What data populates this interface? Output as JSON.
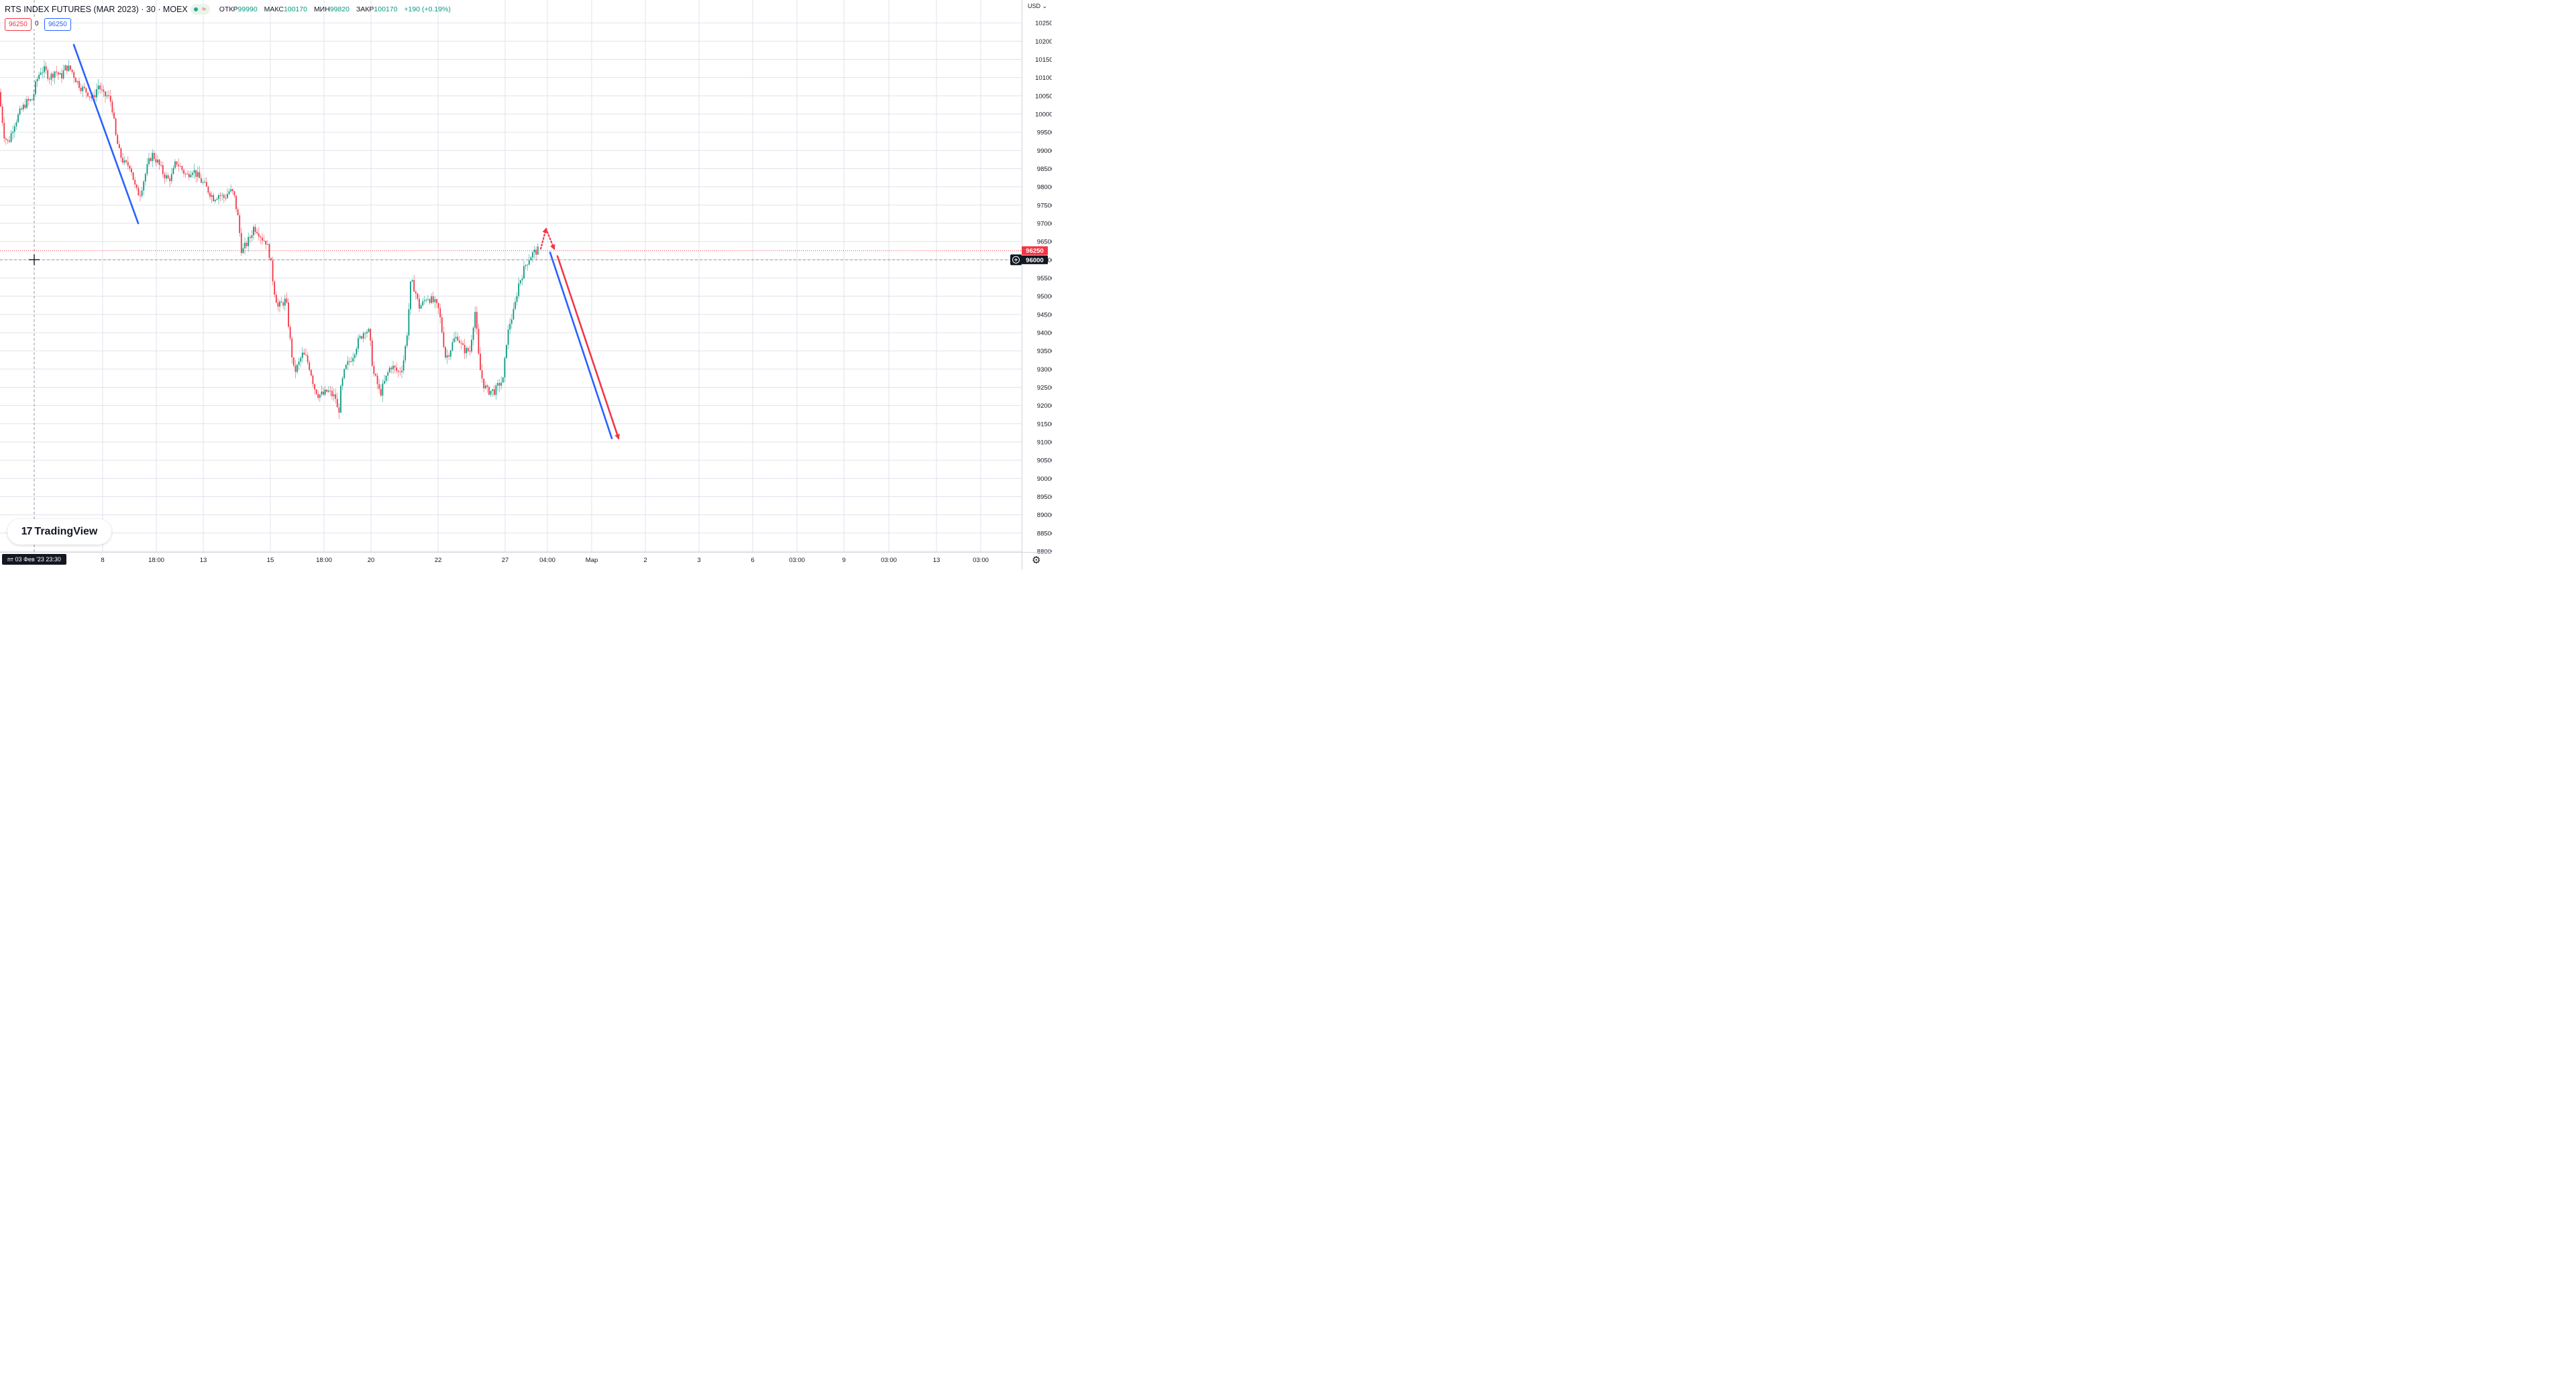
{
  "header": {
    "symbol": "RTS INDEX FUTURES (MAR 2023) · 30 · MOEX",
    "market_icon": "green-dot-icon",
    "wave_icon": "≈",
    "open_label": "ОТКР",
    "open_value": "99990",
    "high_label": "МАКС",
    "high_value": "100170",
    "low_label": "МИН",
    "low_value": "99820",
    "close_label": "ЗАКР",
    "close_value": "100170",
    "change": "+190 (+0.19%)"
  },
  "quote": {
    "sell": "96250",
    "spread": "0",
    "buy": "96250"
  },
  "currency_label": "USD ⌄",
  "logo": {
    "mark": "17",
    "text": "TradingView"
  },
  "colors": {
    "up": "#089981",
    "down": "#f23645",
    "blue_line": "#2962ff",
    "red_line": "#f23645",
    "grid": "#e0e3eb"
  },
  "crosshair": {
    "time_label": "пт 03 Фев '23   23:30",
    "price_label": "96000"
  },
  "last_price_label": "96250",
  "settings_icon": "gear-icon",
  "chart_data": {
    "type": "candlestick",
    "title": "RTS INDEX FUTURES (MAR 2023) · 30 · MOEX",
    "ylim": [
      88000,
      103000
    ],
    "y_ticks": [
      88000,
      88500,
      89000,
      89500,
      90000,
      90500,
      91000,
      91500,
      92000,
      92500,
      93000,
      93500,
      94000,
      94500,
      95000,
      95500,
      96000,
      96500,
      97000,
      97500,
      98000,
      98500,
      99000,
      99500,
      100000,
      100500,
      101000,
      101500,
      102000,
      102500
    ],
    "x_tick_labels": [
      "8",
      "18:00",
      "13",
      "15",
      "18:00",
      "20",
      "22",
      "27",
      "04:00",
      "Мар",
      "2",
      "3",
      "6",
      "03:00",
      "9",
      "03:00",
      "13",
      "03:00"
    ],
    "grid": true,
    "price_path": [
      [
        0,
        100600
      ],
      [
        8,
        99400
      ],
      [
        14,
        99200
      ],
      [
        22,
        99700
      ],
      [
        30,
        100000
      ],
      [
        40,
        100300
      ],
      [
        50,
        100400
      ],
      [
        56,
        100900
      ],
      [
        62,
        101200
      ],
      [
        68,
        101200
      ],
      [
        76,
        101000
      ],
      [
        84,
        101200
      ],
      [
        92,
        101000
      ],
      [
        100,
        101300
      ],
      [
        108,
        101200
      ],
      [
        116,
        100900
      ],
      [
        124,
        100700
      ],
      [
        132,
        100600
      ],
      [
        140,
        100400
      ],
      [
        148,
        100800
      ],
      [
        156,
        100500
      ],
      [
        162,
        100500
      ],
      [
        168,
        100300
      ],
      [
        174,
        99400
      ],
      [
        180,
        98900
      ],
      [
        188,
        98600
      ],
      [
        196,
        98600
      ],
      [
        204,
        97900
      ],
      [
        210,
        97800
      ],
      [
        216,
        98200
      ],
      [
        222,
        98600
      ],
      [
        228,
        98900
      ],
      [
        236,
        98700
      ],
      [
        244,
        98400
      ],
      [
        252,
        98200
      ],
      [
        258,
        98300
      ],
      [
        264,
        98700
      ],
      [
        272,
        98500
      ],
      [
        280,
        98300
      ],
      [
        288,
        98500
      ],
      [
        296,
        98300
      ],
      [
        304,
        98100
      ],
      [
        312,
        97900
      ],
      [
        320,
        97700
      ],
      [
        328,
        97800
      ],
      [
        336,
        97700
      ],
      [
        344,
        97900
      ],
      [
        350,
        97800
      ],
      [
        356,
        97200
      ],
      [
        362,
        96200
      ],
      [
        368,
        96400
      ],
      [
        374,
        96600
      ],
      [
        380,
        96900
      ],
      [
        386,
        96800
      ],
      [
        392,
        96600
      ],
      [
        398,
        96500
      ],
      [
        404,
        96100
      ],
      [
        410,
        95200
      ],
      [
        416,
        94700
      ],
      [
        422,
        94800
      ],
      [
        428,
        94900
      ],
      [
        434,
        93800
      ],
      [
        440,
        92900
      ],
      [
        446,
        93100
      ],
      [
        452,
        93400
      ],
      [
        458,
        93300
      ],
      [
        464,
        93000
      ],
      [
        470,
        92500
      ],
      [
        476,
        92300
      ],
      [
        484,
        92300
      ],
      [
        490,
        92400
      ],
      [
        496,
        92300
      ],
      [
        502,
        92200
      ],
      [
        506,
        91700
      ],
      [
        510,
        92500
      ],
      [
        516,
        93000
      ],
      [
        522,
        93200
      ],
      [
        528,
        93400
      ],
      [
        534,
        93700
      ],
      [
        540,
        93900
      ],
      [
        546,
        94100
      ],
      [
        552,
        94000
      ],
      [
        558,
        92900
      ],
      [
        564,
        92600
      ],
      [
        568,
        92300
      ],
      [
        572,
        92500
      ],
      [
        578,
        92800
      ],
      [
        584,
        93100
      ],
      [
        590,
        93000
      ],
      [
        596,
        92900
      ],
      [
        602,
        93100
      ],
      [
        608,
        93900
      ],
      [
        614,
        95400
      ],
      [
        620,
        95200
      ],
      [
        626,
        94700
      ],
      [
        632,
        94800
      ],
      [
        638,
        95000
      ],
      [
        644,
        94900
      ],
      [
        650,
        94800
      ],
      [
        656,
        94600
      ],
      [
        660,
        94100
      ],
      [
        666,
        93300
      ],
      [
        672,
        93500
      ],
      [
        678,
        93800
      ],
      [
        684,
        93900
      ],
      [
        690,
        93600
      ],
      [
        696,
        93500
      ],
      [
        702,
        93500
      ],
      [
        706,
        94100
      ],
      [
        710,
        94600
      ],
      [
        716,
        93100
      ],
      [
        722,
        92600
      ],
      [
        728,
        92400
      ],
      [
        734,
        92400
      ],
      [
        740,
        92400
      ],
      [
        746,
        92600
      ],
      [
        752,
        92700
      ],
      [
        756,
        93700
      ],
      [
        762,
        94300
      ],
      [
        768,
        94600
      ],
      [
        774,
        95300
      ],
      [
        780,
        95600
      ],
      [
        786,
        95900
      ],
      [
        792,
        96100
      ],
      [
        798,
        96200
      ],
      [
        802,
        96250
      ]
    ],
    "last_price": 96250,
    "crosshair_price": 96000,
    "annotations": [
      {
        "type": "trend-line",
        "color": "blue",
        "from": [
          110,
          101900
        ],
        "to": [
          206,
          97000
        ]
      },
      {
        "type": "trend-line",
        "color": "blue",
        "from": [
          820,
          96200
        ],
        "to": [
          912,
          91100
        ]
      },
      {
        "type": "arrow",
        "color": "red",
        "from": [
          831,
          96100
        ],
        "to": [
          922,
          91100
        ]
      },
      {
        "type": "dotted-arrow",
        "color": "red",
        "from": [
          806,
          96300
        ],
        "to": [
          814,
          96850
        ]
      },
      {
        "type": "dotted-arrow",
        "color": "red",
        "from": [
          814,
          96850
        ],
        "to": [
          826,
          96300
        ]
      }
    ]
  }
}
